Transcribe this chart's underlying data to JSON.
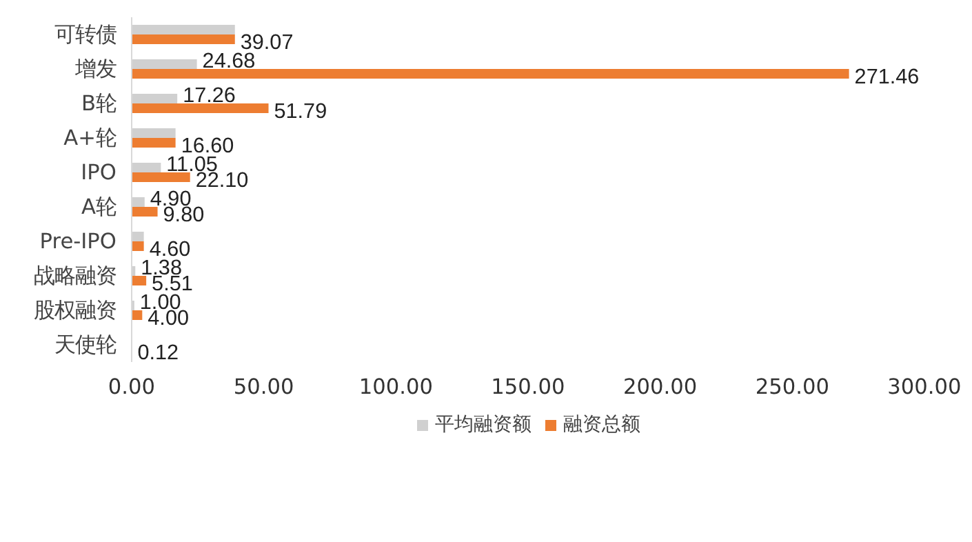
{
  "chart_data": {
    "type": "bar",
    "orientation": "horizontal",
    "categories": [
      "可转债",
      "增发",
      "B轮",
      "A+轮",
      "IPO",
      "A轮",
      "Pre-IPO",
      "战略融资",
      "股权融资",
      "天使轮"
    ],
    "series": [
      {
        "name": "平均融资额",
        "color": "#d0d0d0",
        "values": [
          39.07,
          24.68,
          17.26,
          16.6,
          11.05,
          4.9,
          4.6,
          1.38,
          1.0,
          0.12
        ],
        "value_labels": [
          null,
          "24.68",
          "17.26",
          null,
          "11.05",
          "4.90",
          null,
          "1.38",
          "1.00",
          null
        ]
      },
      {
        "name": "融资总额",
        "color": "#ed7d31",
        "values": [
          39.07,
          271.46,
          51.79,
          16.6,
          22.1,
          9.8,
          4.6,
          5.51,
          4.0,
          0.12
        ],
        "value_labels": [
          "39.07",
          "271.46",
          "51.79",
          "16.60",
          "22.10",
          "9.80",
          "4.60",
          "5.51",
          "4.00",
          "0.12"
        ]
      }
    ],
    "xlim": [
      0,
      300
    ],
    "xticks": [
      {
        "value": 0,
        "label": "0.00"
      },
      {
        "value": 50,
        "label": "50.00"
      },
      {
        "value": 100,
        "label": "100.00"
      },
      {
        "value": 150,
        "label": "150.00"
      },
      {
        "value": 200,
        "label": "200.00"
      },
      {
        "value": 250,
        "label": "250.00"
      },
      {
        "value": 300,
        "label": "300.00"
      }
    ],
    "grid": false,
    "legend": "bottom"
  }
}
